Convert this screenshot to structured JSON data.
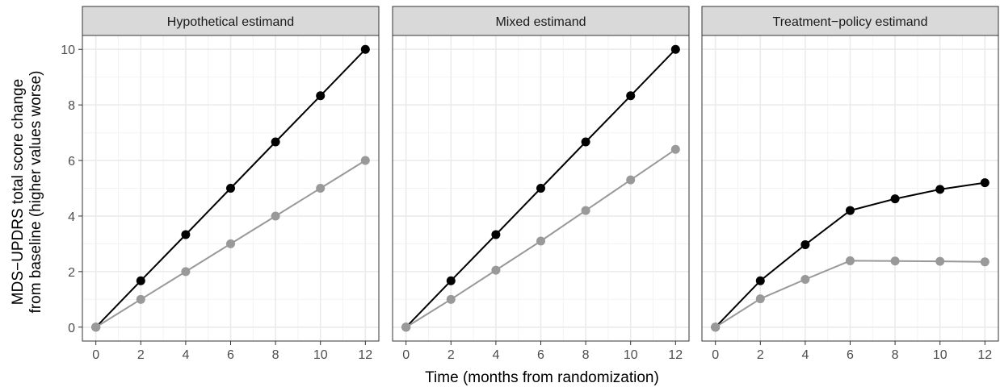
{
  "chart_data": {
    "type": "line",
    "xlabel": "Time (months from randomization)",
    "ylabel_lines": [
      "MDS−UPDRS total score change",
      "from baseline (higher values worse)"
    ],
    "x_ticks": [
      0,
      2,
      4,
      6,
      8,
      10,
      12
    ],
    "y_ticks": [
      0,
      2,
      4,
      6,
      8,
      10
    ],
    "xlim": [
      -0.6,
      12.6
    ],
    "ylim": [
      -0.5,
      10.5
    ],
    "grid": true,
    "legend": "none",
    "colors": {
      "series_dark": "#000000",
      "series_light": "#999999",
      "strip_fill": "#d9d9d9",
      "grid": "#ebebeb"
    },
    "panels": [
      {
        "title": "Hypothetical estimand",
        "series": [
          {
            "color_key": "series_dark",
            "x": [
              0,
              2,
              4,
              6,
              8,
              10,
              12
            ],
            "y": [
              0,
              1.67,
              3.33,
              5.0,
              6.67,
              8.33,
              10.0
            ]
          },
          {
            "color_key": "series_light",
            "x": [
              0,
              2,
              4,
              6,
              8,
              10,
              12
            ],
            "y": [
              0,
              1.0,
              2.0,
              3.0,
              4.0,
              5.0,
              6.0
            ]
          }
        ]
      },
      {
        "title": "Mixed estimand",
        "series": [
          {
            "color_key": "series_dark",
            "x": [
              0,
              2,
              4,
              6,
              8,
              10,
              12
            ],
            "y": [
              0,
              1.67,
              3.33,
              5.0,
              6.67,
              8.33,
              10.0
            ]
          },
          {
            "color_key": "series_light",
            "x": [
              0,
              2,
              4,
              6,
              8,
              10,
              12
            ],
            "y": [
              0,
              1.0,
              2.05,
              3.1,
              4.2,
              5.3,
              6.4
            ]
          }
        ]
      },
      {
        "title": "Treatment−policy estimand",
        "series": [
          {
            "color_key": "series_dark",
            "x": [
              0,
              2,
              4,
              6,
              8,
              10,
              12
            ],
            "y": [
              0,
              1.67,
              2.97,
              4.2,
              4.62,
              4.96,
              5.2
            ]
          },
          {
            "color_key": "series_light",
            "x": [
              0,
              2,
              4,
              6,
              8,
              10,
              12
            ],
            "y": [
              0,
              1.02,
              1.72,
              2.39,
              2.38,
              2.37,
              2.35
            ]
          }
        ]
      }
    ]
  }
}
